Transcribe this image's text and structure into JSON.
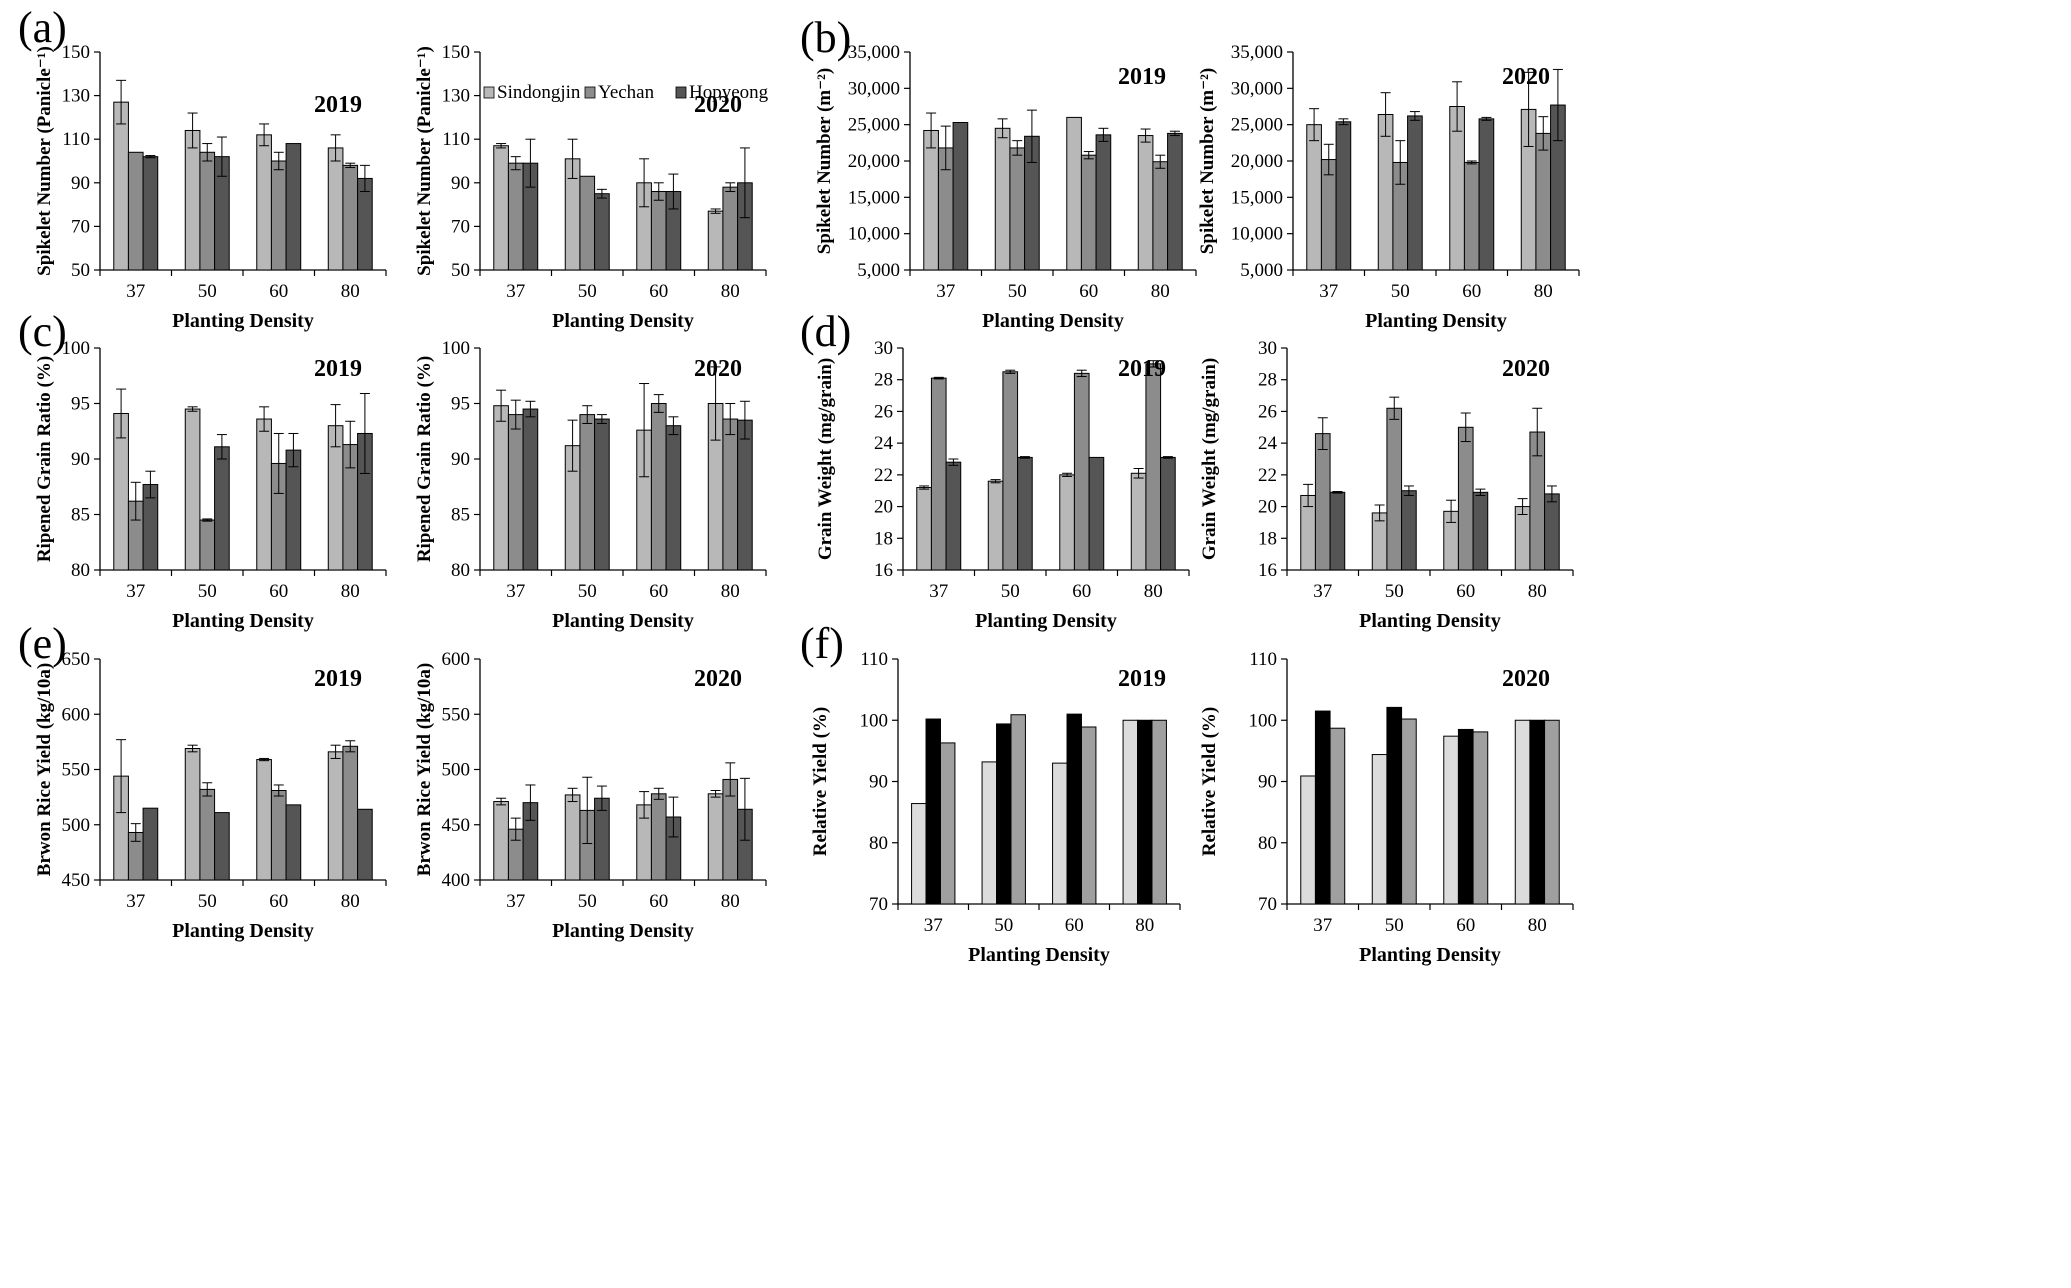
{
  "figure": {
    "series_names": [
      "Sindongjin",
      "Yechan",
      "Hopyeong"
    ],
    "panel_letters": [
      "(a)",
      "(b)",
      "(c)",
      "(d)",
      "(e)",
      "(f)"
    ]
  },
  "chart_data": [
    {
      "id": "a1",
      "panel_letter": "(a)",
      "type": "bar",
      "title": "2019",
      "xlabel": "Planting Density",
      "ylabel": "Spikelet Number (Panicle⁻¹)",
      "categories": [
        "37",
        "50",
        "60",
        "80"
      ],
      "ylim": [
        50,
        150
      ],
      "yticks": [
        "50",
        "70",
        "90",
        "110",
        "130",
        "150"
      ],
      "series": [
        {
          "values": [
            127,
            114,
            112,
            106
          ],
          "errors": [
            10,
            8,
            5,
            6
          ],
          "color": "#b8b8b8"
        },
        {
          "values": [
            104,
            104,
            100,
            98
          ],
          "errors": [
            0,
            4,
            4,
            1
          ],
          "color": "#8c8c8c"
        },
        {
          "values": [
            102,
            102,
            108,
            92
          ],
          "errors": [
            0.5,
            9,
            0,
            6
          ],
          "color": "#555555"
        }
      ]
    },
    {
      "id": "a2",
      "type": "bar",
      "title": "2020",
      "xlabel": "Planting Density",
      "ylabel": "Spikelet Number (Panicle⁻¹)",
      "categories": [
        "37",
        "50",
        "60",
        "80"
      ],
      "ylim": [
        50,
        150
      ],
      "yticks": [
        "50",
        "70",
        "90",
        "110",
        "130",
        "150"
      ],
      "legend": [
        "Sindongjin",
        "Yechan",
        "Hopyeong"
      ],
      "legend_position": "top",
      "series": [
        {
          "name": "Sindongjin",
          "values": [
            107,
            101,
            90,
            77
          ],
          "errors": [
            1,
            9,
            11,
            1
          ],
          "color": "#b8b8b8"
        },
        {
          "name": "Yechan",
          "values": [
            99,
            93,
            86,
            88
          ],
          "errors": [
            3,
            0,
            4,
            2
          ],
          "color": "#8c8c8c"
        },
        {
          "name": "Hopyeong",
          "values": [
            99,
            85,
            86,
            90
          ],
          "errors": [
            11,
            2,
            8,
            16
          ],
          "color": "#555555"
        }
      ]
    },
    {
      "id": "b1",
      "panel_letter": "(b)",
      "type": "bar",
      "title": "2019",
      "xlabel": "Planting Density",
      "ylabel": "Spikelet Number (m⁻²)",
      "categories": [
        "37",
        "50",
        "60",
        "80"
      ],
      "ylim": [
        5000,
        35000
      ],
      "yticks": [
        "5,000",
        "10,000",
        "15,000",
        "20,000",
        "25,000",
        "30,000",
        "35,000"
      ],
      "series": [
        {
          "values": [
            24200,
            24500,
            26000,
            23500
          ],
          "errors": [
            2400,
            1300,
            0,
            900
          ],
          "color": "#b8b8b8"
        },
        {
          "values": [
            21800,
            21800,
            20800,
            19900
          ],
          "errors": [
            3000,
            1000,
            500,
            900
          ],
          "color": "#8c8c8c"
        },
        {
          "values": [
            25300,
            23400,
            23600,
            23800
          ],
          "errors": [
            0,
            3600,
            900,
            300
          ],
          "color": "#555555"
        }
      ]
    },
    {
      "id": "b2",
      "type": "bar",
      "title": "2020",
      "xlabel": "Planting Density",
      "ylabel": "Spikelet Number (m⁻²)",
      "categories": [
        "37",
        "50",
        "60",
        "80"
      ],
      "ylim": [
        5000,
        35000
      ],
      "yticks": [
        "5,000",
        "10,000",
        "15,000",
        "20,000",
        "25,000",
        "30,000",
        "35,000"
      ],
      "series": [
        {
          "values": [
            25000,
            26400,
            27500,
            27100
          ],
          "errors": [
            2200,
            3000,
            3400,
            5100
          ],
          "color": "#b8b8b8"
        },
        {
          "values": [
            20200,
            19800,
            19800,
            23800
          ],
          "errors": [
            2100,
            3000,
            200,
            2300
          ],
          "color": "#8c8c8c"
        },
        {
          "values": [
            25400,
            26200,
            25800,
            27700
          ],
          "errors": [
            400,
            600,
            200,
            4900
          ],
          "color": "#555555"
        }
      ]
    },
    {
      "id": "c1",
      "panel_letter": "(c)",
      "type": "bar",
      "title": "2019",
      "xlabel": "Planting Density",
      "ylabel": "Ripened Grain Ratio (%)",
      "categories": [
        "37",
        "50",
        "60",
        "80"
      ],
      "ylim": [
        80,
        100
      ],
      "yticks": [
        "80",
        "85",
        "90",
        "95",
        "100"
      ],
      "series": [
        {
          "values": [
            94.1,
            94.5,
            93.6,
            93.0
          ],
          "errors": [
            2.2,
            0.2,
            1.1,
            1.9
          ],
          "color": "#b8b8b8"
        },
        {
          "values": [
            86.2,
            84.5,
            89.6,
            91.3
          ],
          "errors": [
            1.7,
            0.1,
            2.7,
            2.1
          ],
          "color": "#8c8c8c"
        },
        {
          "values": [
            87.7,
            91.1,
            90.8,
            92.3
          ],
          "errors": [
            1.2,
            1.1,
            1.5,
            3.6
          ],
          "color": "#555555"
        }
      ]
    },
    {
      "id": "c2",
      "type": "bar",
      "title": "2020",
      "xlabel": "Planting Density",
      "ylabel": "Ripened Grain Ratio (%)",
      "categories": [
        "37",
        "50",
        "60",
        "80"
      ],
      "ylim": [
        80,
        100
      ],
      "yticks": [
        "80",
        "85",
        "90",
        "95",
        "100"
      ],
      "series": [
        {
          "values": [
            94.8,
            91.2,
            92.6,
            95.0
          ],
          "errors": [
            1.4,
            2.3,
            4.2,
            3.3
          ],
          "color": "#b8b8b8"
        },
        {
          "values": [
            94.0,
            94.0,
            95.0,
            93.6
          ],
          "errors": [
            1.3,
            0.8,
            0.8,
            1.4
          ],
          "color": "#8c8c8c"
        },
        {
          "values": [
            94.5,
            93.6,
            93.0,
            93.5
          ],
          "errors": [
            0.7,
            0.4,
            0.8,
            1.7
          ],
          "color": "#555555"
        }
      ]
    },
    {
      "id": "d1",
      "panel_letter": "(d)",
      "type": "bar",
      "title": "2019",
      "xlabel": "Planting Density",
      "ylabel": "Grain Weight (mg/grain)",
      "categories": [
        "37",
        "50",
        "60",
        "80"
      ],
      "ylim": [
        16,
        30
      ],
      "yticks": [
        "16",
        "18",
        "20",
        "22",
        "24",
        "26",
        "28",
        "30"
      ],
      "series": [
        {
          "values": [
            21.2,
            21.6,
            22.0,
            22.1
          ],
          "errors": [
            0.1,
            0.1,
            0.1,
            0.3
          ],
          "color": "#b8b8b8"
        },
        {
          "values": [
            28.1,
            28.5,
            28.4,
            29.0
          ],
          "errors": [
            0.05,
            0.1,
            0.2,
            0.2
          ],
          "color": "#8c8c8c"
        },
        {
          "values": [
            22.8,
            23.1,
            23.1,
            23.1
          ],
          "errors": [
            0.2,
            0.05,
            0,
            0.05
          ],
          "color": "#555555"
        }
      ]
    },
    {
      "id": "d2",
      "type": "bar",
      "title": "2020",
      "xlabel": "Planting Density",
      "ylabel": "Grain Weight (mg/grain)",
      "categories": [
        "37",
        "50",
        "60",
        "80"
      ],
      "ylim": [
        16,
        30
      ],
      "yticks": [
        "16",
        "18",
        "20",
        "22",
        "24",
        "26",
        "28",
        "30"
      ],
      "series": [
        {
          "values": [
            20.7,
            19.6,
            19.7,
            20.0
          ],
          "errors": [
            0.7,
            0.5,
            0.7,
            0.5
          ],
          "color": "#b8b8b8"
        },
        {
          "values": [
            24.6,
            26.2,
            25.0,
            24.7
          ],
          "errors": [
            1.0,
            0.7,
            0.9,
            1.5
          ],
          "color": "#8c8c8c"
        },
        {
          "values": [
            20.9,
            21.0,
            20.9,
            20.8
          ],
          "errors": [
            0.05,
            0.3,
            0.2,
            0.5
          ],
          "color": "#555555"
        }
      ]
    },
    {
      "id": "e1",
      "panel_letter": "(e)",
      "type": "bar",
      "title": "2019",
      "xlabel": "Planting Density",
      "ylabel": "Brwon Rice Yield  (kg/10a)",
      "categories": [
        "37",
        "50",
        "60",
        "80"
      ],
      "ylim": [
        450,
        650
      ],
      "yticks": [
        "450",
        "500",
        "550",
        "600",
        "650"
      ],
      "series": [
        {
          "values": [
            544,
            569,
            559,
            566
          ],
          "errors": [
            33,
            3,
            1,
            6
          ],
          "color": "#b8b8b8"
        },
        {
          "values": [
            493,
            532,
            531,
            571
          ],
          "errors": [
            8,
            6,
            5,
            5
          ],
          "color": "#8c8c8c"
        },
        {
          "values": [
            515,
            511,
            518,
            514
          ],
          "errors": [
            0,
            0,
            0,
            0
          ],
          "color": "#555555"
        }
      ]
    },
    {
      "id": "e2",
      "type": "bar",
      "title": "2020",
      "xlabel": "Planting Density",
      "ylabel": "Brwon Rice Yield  (kg/10a)",
      "categories": [
        "37",
        "50",
        "60",
        "80"
      ],
      "ylim": [
        400,
        600
      ],
      "yticks": [
        "400",
        "450",
        "500",
        "550",
        "600"
      ],
      "series": [
        {
          "values": [
            471,
            477,
            468,
            478
          ],
          "errors": [
            3,
            6,
            12,
            3
          ],
          "color": "#b8b8b8"
        },
        {
          "values": [
            446,
            463,
            478,
            491
          ],
          "errors": [
            10,
            30,
            5,
            15
          ],
          "color": "#8c8c8c"
        },
        {
          "values": [
            470,
            474,
            457,
            464
          ],
          "errors": [
            16,
            11,
            18,
            28
          ],
          "color": "#555555"
        }
      ]
    },
    {
      "id": "f1",
      "panel_letter": "(f)",
      "type": "bar",
      "title": "2019",
      "xlabel": "Planting Density",
      "ylabel": "Relative Yield  (%)",
      "categories": [
        "37",
        "50",
        "60",
        "80"
      ],
      "ylim": [
        70,
        110
      ],
      "yticks": [
        "70",
        "80",
        "90",
        "100",
        "110"
      ],
      "series": [
        {
          "values": [
            86.4,
            93.2,
            93.0,
            100.0
          ],
          "color": "#dcdcdc"
        },
        {
          "values": [
            100.2,
            99.4,
            101.0,
            100.0
          ],
          "color": "#000000"
        },
        {
          "values": [
            96.3,
            100.9,
            98.9,
            100.0
          ],
          "color": "#a0a0a0"
        }
      ]
    },
    {
      "id": "f2",
      "type": "bar",
      "title": "2020",
      "xlabel": "Planting Density",
      "ylabel": "Relative Yield  (%)",
      "categories": [
        "37",
        "50",
        "60",
        "80"
      ],
      "ylim": [
        70,
        110
      ],
      "yticks": [
        "70",
        "80",
        "90",
        "100",
        "110"
      ],
      "series": [
        {
          "values": [
            90.9,
            94.4,
            97.4,
            100.0
          ],
          "color": "#dcdcdc"
        },
        {
          "values": [
            101.5,
            102.1,
            98.5,
            100.0
          ],
          "color": "#000000"
        },
        {
          "values": [
            98.7,
            100.2,
            98.1,
            100.0
          ],
          "color": "#a0a0a0"
        }
      ]
    }
  ]
}
